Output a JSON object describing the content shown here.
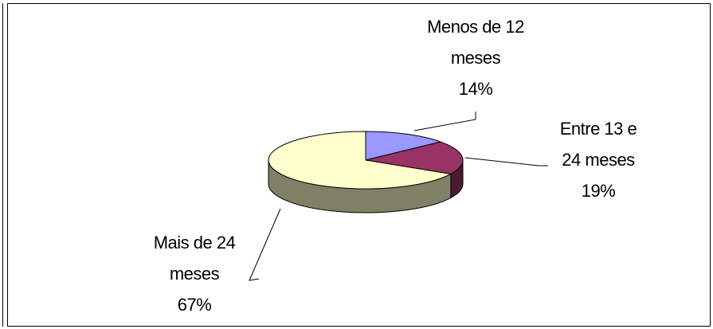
{
  "chart_data": {
    "type": "pie3d",
    "categories": [
      "Menos de 12 meses",
      "Entre 13 e 24 meses",
      "Mais de 24 meses"
    ],
    "values": [
      14,
      19,
      67
    ],
    "value_labels": [
      "14%",
      "19%",
      "67%"
    ],
    "colors": [
      "#9999ff",
      "#993366",
      "#ffffcc"
    ],
    "side_colors": [
      "#5c5c99",
      "#4d1a33",
      "#808066"
    ]
  }
}
